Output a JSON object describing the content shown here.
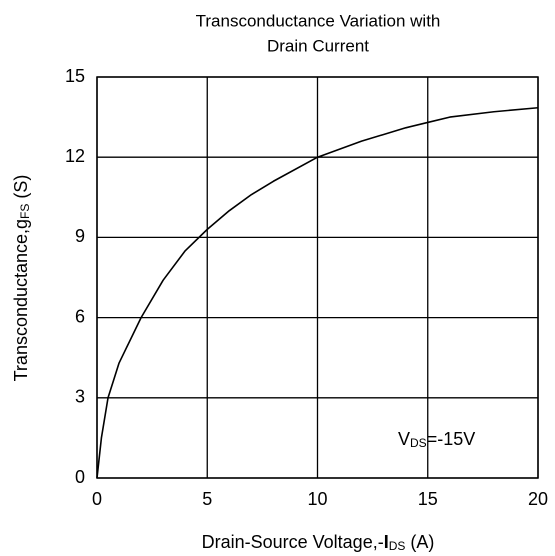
{
  "chart_data": {
    "type": "line",
    "title": [
      "Transconductance Variation with",
      "Drain Current"
    ],
    "xlabel": {
      "main": "Drain-Source Voltage,-",
      "bold": "I",
      "sub": "DS",
      "tail": " (A)"
    },
    "ylabel": {
      "main": "Transconductance,g",
      "sub": "FS",
      "tail": " (S)"
    },
    "annotation": {
      "main": "V",
      "sub": "DS",
      "tail": "=-15V"
    },
    "x": [
      0,
      0.2,
      0.5,
      1,
      2,
      3,
      4,
      5,
      6,
      7,
      8,
      10,
      12,
      14,
      15,
      16,
      18,
      20
    ],
    "values": [
      0,
      1.5,
      3,
      4.3,
      6,
      7.4,
      8.5,
      9.3,
      10,
      10.6,
      11.1,
      12,
      12.6,
      13.1,
      13.3,
      13.5,
      13.7,
      13.85
    ],
    "color": "#000000",
    "xlim": [
      0,
      20
    ],
    "xticks": [
      0,
      5,
      10,
      15,
      20
    ],
    "ylim": [
      0,
      15
    ],
    "yticks": [
      0,
      3,
      6,
      9,
      12,
      15
    ],
    "grid": true
  }
}
